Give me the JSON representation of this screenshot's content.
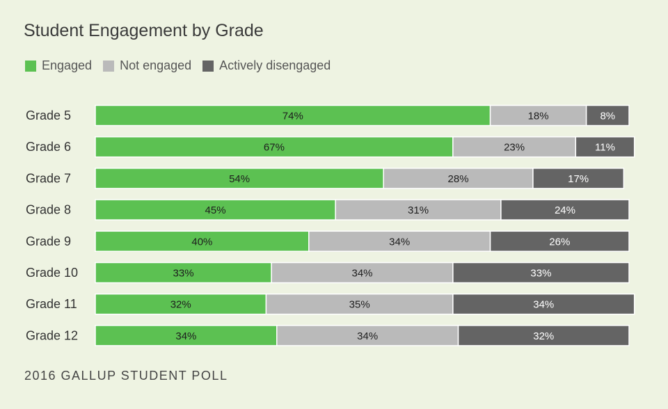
{
  "chart_data": {
    "type": "bar",
    "orientation": "horizontal",
    "stacked": true,
    "title": "Student Engagement by Grade",
    "categories": [
      "Grade 5",
      "Grade 6",
      "Grade 7",
      "Grade 8",
      "Grade 9",
      "Grade 10",
      "Grade 11",
      "Grade 12"
    ],
    "series": [
      {
        "name": "Engaged",
        "color": "#5cc152",
        "label_color": "#1e1e1e",
        "values": [
          74,
          67,
          54,
          45,
          40,
          33,
          32,
          34
        ]
      },
      {
        "name": "Not engaged",
        "color": "#bababa",
        "label_color": "#1e1e1e",
        "values": [
          18,
          23,
          28,
          31,
          34,
          34,
          35,
          34
        ]
      },
      {
        "name": "Actively disengaged",
        "color": "#646464",
        "label_color": "#ffffff",
        "values": [
          8,
          11,
          17,
          24,
          26,
          33,
          34,
          32
        ]
      }
    ],
    "value_suffix": "%",
    "xlim": [
      0,
      100
    ],
    "grid": false,
    "legend_position": "top-left",
    "source": "2016 GALLUP STUDENT POLL"
  }
}
